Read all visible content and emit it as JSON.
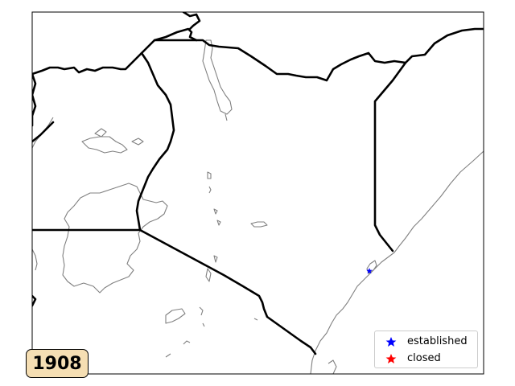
{
  "year_label": "1908",
  "legend": {
    "items": [
      {
        "label": "established",
        "color": "#0000ff",
        "marker": "star"
      },
      {
        "label": "closed",
        "color": "#ff0000",
        "marker": "star"
      }
    ]
  },
  "colors": {
    "border": "#000000",
    "coastline": "#808080",
    "year_box_fill": "#f5deb3"
  }
}
